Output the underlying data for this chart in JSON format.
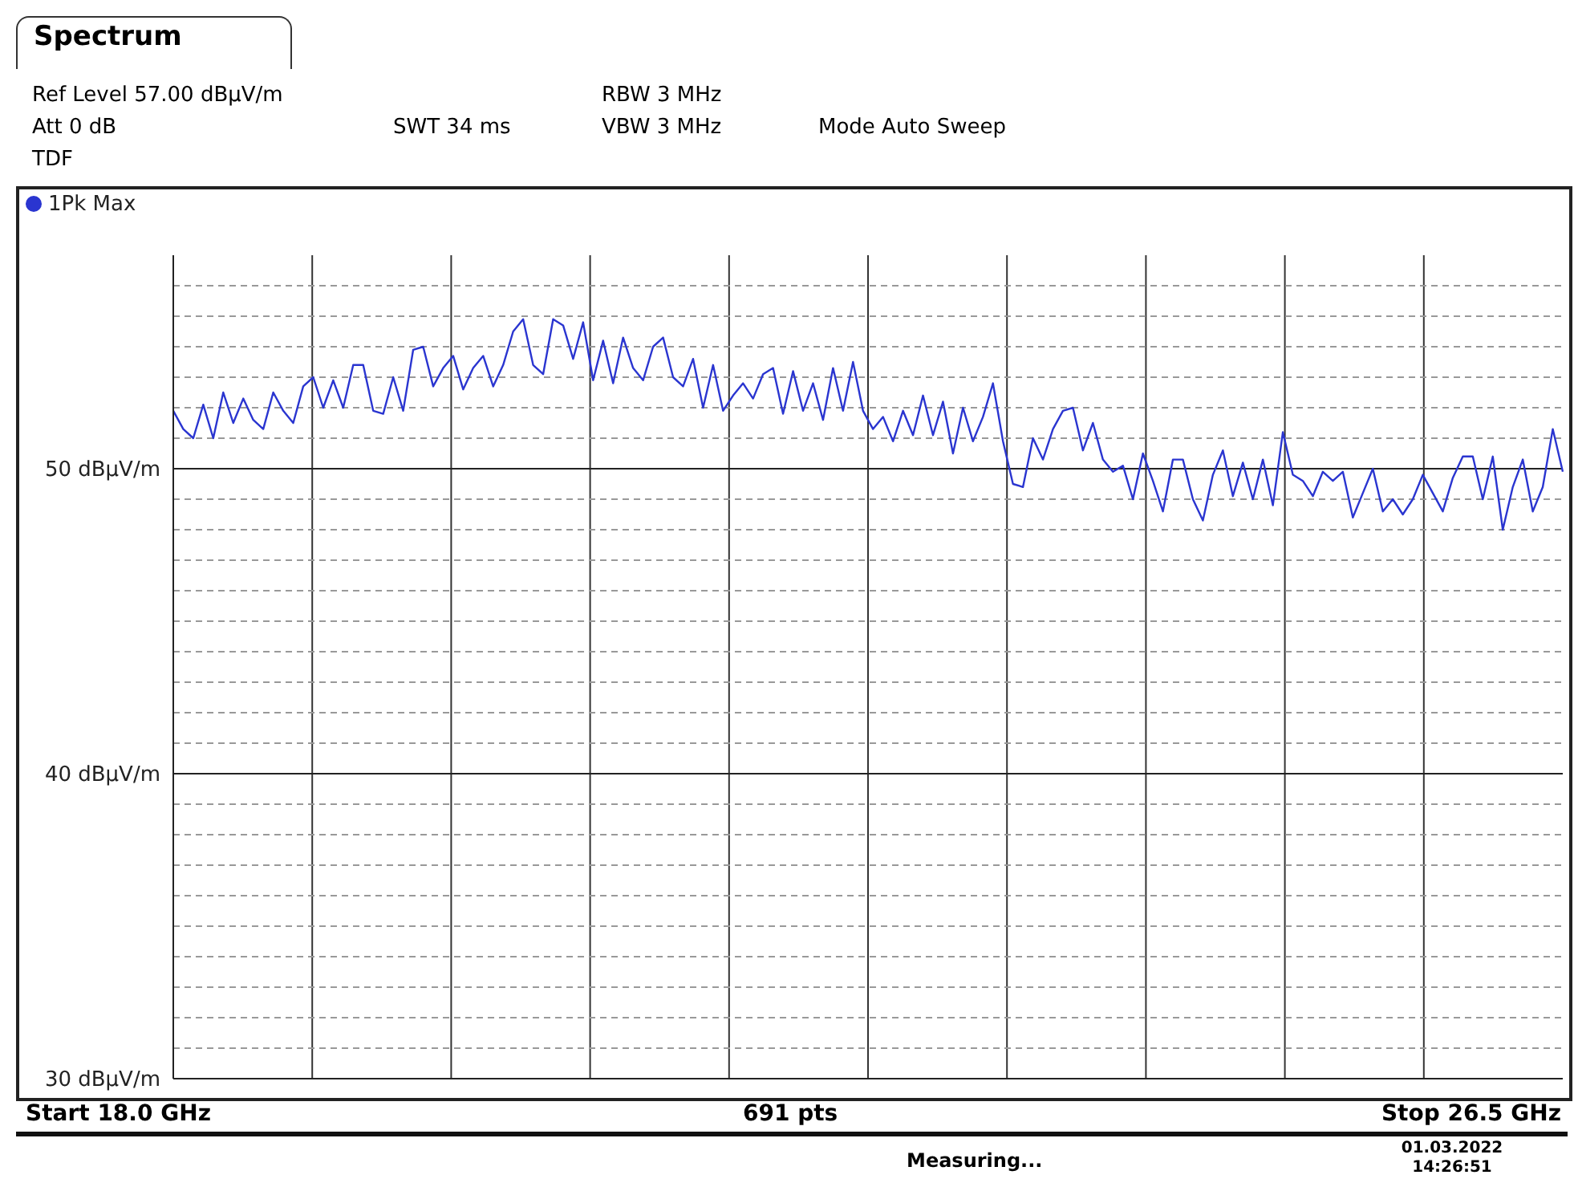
{
  "chart_data": {
    "type": "line",
    "title": "Spectrum",
    "annotations": [
      "Ref Level 57.00 dBµV/m",
      "RBW 3 MHz",
      "Att 0 dB",
      "SWT 34 ms",
      "VBW 3 MHz",
      "Mode Auto Sweep",
      "TDF",
      "Start 18.0 GHz",
      "691 pts",
      "Stop 26.5 GHz",
      "Measuring...",
      "01.03.2022 14:26:51"
    ],
    "categories": [
      null,
      null,
      null,
      null,
      null,
      null,
      null,
      null,
      null,
      null,
      null,
      null,
      null,
      null,
      null,
      null,
      null,
      null,
      null,
      null,
      null,
      null,
      null,
      null,
      null,
      null,
      null,
      null,
      null,
      null,
      null,
      null,
      null,
      null,
      null,
      null,
      null,
      null,
      null,
      null,
      null,
      null,
      null,
      null,
      null,
      null,
      null,
      null,
      null,
      null,
      null,
      null,
      null,
      null,
      null,
      null,
      null,
      null,
      null,
      null,
      null,
      null,
      null,
      null,
      null,
      null,
      null,
      null,
      null,
      null,
      null,
      null,
      null,
      null,
      null,
      null,
      null,
      null,
      null,
      null,
      null,
      null,
      null,
      null,
      null,
      null,
      null,
      null,
      null,
      null,
      null,
      null,
      null,
      null,
      null,
      null,
      null,
      null,
      null,
      null,
      null,
      null,
      null,
      null,
      null,
      null,
      null,
      null,
      null,
      null,
      null,
      null,
      null,
      null,
      null,
      null,
      null,
      null,
      null,
      null,
      null,
      null,
      null,
      null,
      null,
      null,
      null,
      null,
      null,
      null,
      null,
      null,
      null,
      null,
      null,
      null,
      null,
      null,
      null,
      null
    ],
    "ylim": [
      30,
      57
    ],
    "yticks": [
      {
        "value": 30,
        "label": "30 dBµV/m"
      },
      {
        "value": 31,
        "label": null
      },
      {
        "value": 32,
        "label": null
      },
      {
        "value": 33,
        "label": null
      },
      {
        "value": 34,
        "label": null
      },
      {
        "value": 35,
        "label": null
      },
      {
        "value": 36,
        "label": null
      },
      {
        "value": 37,
        "label": null
      },
      {
        "value": 38,
        "label": null
      },
      {
        "value": 39,
        "label": null
      },
      {
        "value": 40,
        "label": "40 dBµV/m"
      },
      {
        "value": 41,
        "label": null
      },
      {
        "value": 42,
        "label": null
      },
      {
        "value": 43,
        "label": null
      },
      {
        "value": 44,
        "label": null
      },
      {
        "value": 45,
        "label": null
      },
      {
        "value": 46,
        "label": null
      },
      {
        "value": 47,
        "label": null
      },
      {
        "value": 48,
        "label": null
      },
      {
        "value": 49,
        "label": null
      },
      {
        "value": 50,
        "label": "50 dBµV/m"
      },
      {
        "value": 51,
        "label": null
      },
      {
        "value": 52,
        "label": null
      },
      {
        "value": 53,
        "label": null
      },
      {
        "value": 54,
        "label": null
      },
      {
        "value": 55,
        "label": null
      },
      {
        "value": 56,
        "label": null
      }
    ],
    "grid": true,
    "legend": "top left",
    "tick_labels": "y",
    "marker": "none",
    "series": [
      {
        "name": "1Pk Max",
        "color": "#2a35d0",
        "values": [
          51.9,
          51.3,
          51.0,
          52.1,
          51.0,
          52.5,
          51.5,
          52.3,
          51.6,
          51.3,
          52.5,
          51.9,
          51.5,
          52.7,
          53.0,
          52.0,
          52.9,
          52.0,
          53.4,
          53.4,
          51.9,
          51.8,
          53.0,
          51.9,
          53.9,
          54.0,
          52.7,
          53.3,
          53.7,
          52.6,
          53.3,
          53.7,
          52.7,
          53.4,
          54.5,
          54.9,
          53.4,
          53.1,
          54.9,
          54.7,
          53.6,
          54.8,
          52.9,
          54.2,
          52.8,
          54.3,
          53.3,
          52.9,
          54.0,
          54.3,
          53.0,
          52.7,
          53.6,
          52.0,
          53.4,
          51.9,
          52.4,
          52.8,
          52.3,
          53.1,
          53.3,
          51.8,
          53.2,
          51.9,
          52.8,
          51.6,
          53.3,
          51.9,
          53.5,
          51.9,
          51.3,
          51.7,
          50.9,
          51.9,
          51.1,
          52.4,
          51.1,
          52.2,
          50.5,
          52.0,
          50.9,
          51.7,
          52.8,
          50.9,
          49.5,
          49.4,
          51.0,
          50.3,
          51.3,
          51.9,
          52.0,
          50.6,
          51.5,
          50.3,
          49.9,
          50.1,
          49.0,
          50.5,
          49.6,
          48.6,
          50.3,
          50.3,
          49.0,
          48.3,
          49.8,
          50.6,
          49.1,
          50.2,
          49.0,
          50.3,
          48.8,
          51.2,
          49.8,
          49.6,
          49.1,
          49.9,
          49.6,
          49.9,
          48.4,
          49.2,
          50.0,
          48.6,
          49.0,
          48.5,
          49.0,
          49.8,
          49.2,
          48.6,
          49.7,
          50.4,
          50.4,
          49.0,
          50.4,
          48.0,
          49.4,
          50.3,
          48.6,
          49.4,
          51.3,
          49.9
        ]
      }
    ]
  }
}
